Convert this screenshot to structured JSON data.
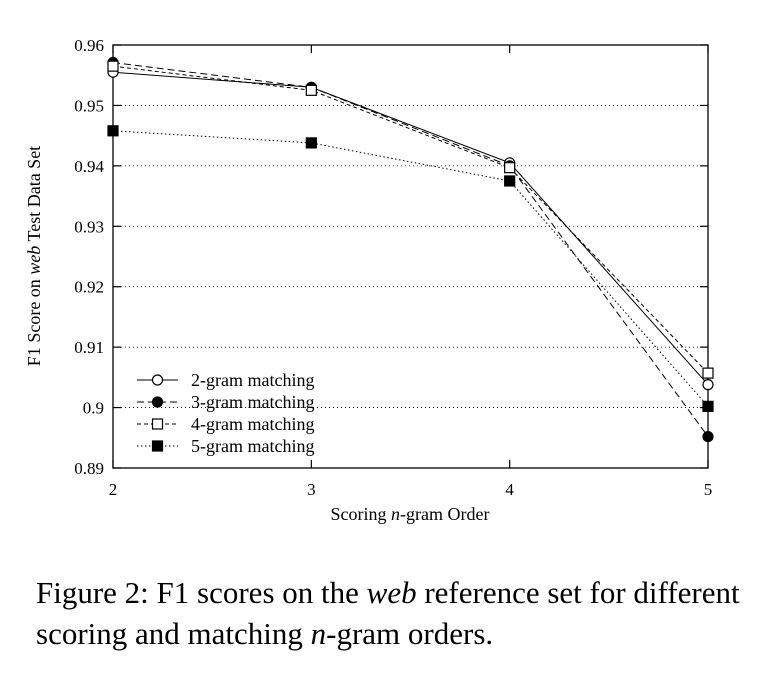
{
  "chart_data": {
    "type": "line",
    "title": "",
    "xlabel": {
      "before": "Scoring ",
      "italic": "n",
      "after": "-gram Order"
    },
    "ylabel": {
      "before": "F1 Score on ",
      "italic": "web",
      "after": " Test Data Set"
    },
    "x": [
      2,
      3,
      4,
      5
    ],
    "xlim": [
      2,
      5
    ],
    "ylim": [
      0.89,
      0.96
    ],
    "xticks": [
      "2",
      "3",
      "4",
      "5"
    ],
    "yticks": [
      "0.89",
      "0.9",
      "0.91",
      "0.92",
      "0.93",
      "0.94",
      "0.95",
      "0.96"
    ],
    "grid": "horizontal-dotted",
    "legend_position": "bottom-left",
    "series": [
      {
        "name": "2-gram matching",
        "values": [
          0.9555,
          0.953,
          0.9405,
          0.9038
        ],
        "marker": "open-circle",
        "line": "solid"
      },
      {
        "name": "3-gram matching",
        "values": [
          0.9571,
          0.953,
          0.94,
          0.8952
        ],
        "marker": "filled-circle",
        "line": "dashed"
      },
      {
        "name": "4-gram matching",
        "values": [
          0.9565,
          0.9525,
          0.9397,
          0.9057
        ],
        "marker": "open-square",
        "line": "dashed-short"
      },
      {
        "name": "5-gram matching",
        "values": [
          0.9458,
          0.9438,
          0.9375,
          0.9002
        ],
        "marker": "filled-square",
        "line": "dotted"
      }
    ]
  },
  "caption": {
    "prefix": "Figure 2: F1 scores on the ",
    "italic1": "web",
    "middle": " reference set for different scoring and matching ",
    "italic2": "n",
    "suffix": "-gram orders."
  }
}
